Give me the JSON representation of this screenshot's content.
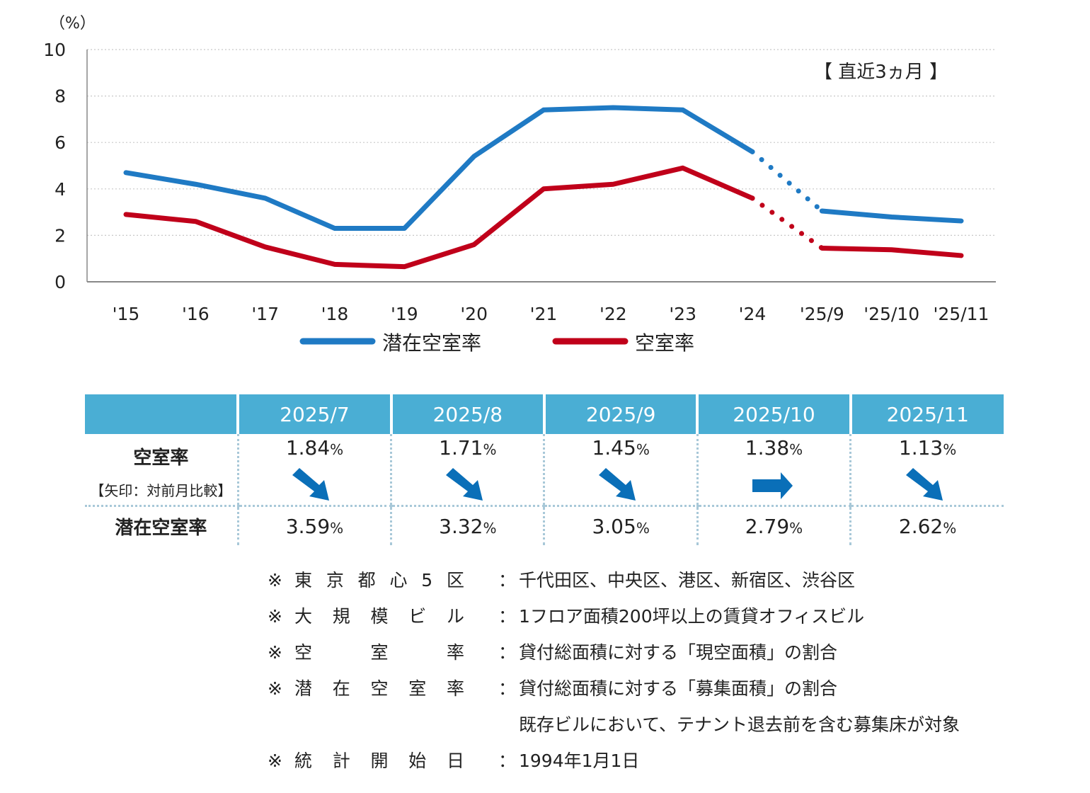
{
  "chart_data": {
    "type": "line",
    "unit_label": "（%）",
    "categories": [
      "'15",
      "'16",
      "'17",
      "'18",
      "'19",
      "'20",
      "'21",
      "'22",
      "'23",
      "'24",
      "'25/9",
      "'25/10",
      "'25/11"
    ],
    "ylim": [
      0,
      10
    ],
    "yticks": [
      0,
      2,
      4,
      6,
      8,
      10
    ],
    "grid": true,
    "annotation": "【 直近3ヵ月 】",
    "legend": "bottom",
    "series": [
      {
        "name": "潜在空室率",
        "color": "#1f7ac4",
        "values": [
          4.7,
          4.2,
          3.6,
          2.3,
          2.3,
          5.4,
          7.4,
          7.5,
          7.4,
          5.6,
          3.05,
          2.79,
          2.62
        ]
      },
      {
        "name": "空室率",
        "color": "#c0001a",
        "values": [
          2.9,
          2.6,
          1.5,
          0.75,
          0.65,
          1.6,
          4.0,
          4.2,
          4.9,
          3.6,
          1.45,
          1.38,
          1.13
        ]
      }
    ],
    "dotted_segment": [
      9,
      10
    ]
  },
  "table": {
    "header_color": "#4aaed4",
    "arrow_color": "#0a6fb8",
    "months": [
      "2025/7",
      "2025/8",
      "2025/9",
      "2025/10",
      "2025/11"
    ],
    "rows": {
      "vacancy": {
        "label": "空室率",
        "sublabel": "【矢印：対前月比較】",
        "values": [
          "1.84",
          "1.71",
          "1.45",
          "1.38",
          "1.13"
        ],
        "arrows": [
          "down",
          "down",
          "down",
          "flat",
          "down"
        ]
      },
      "potential": {
        "label": "潜在空室率",
        "values": [
          "3.59",
          "3.32",
          "3.05",
          "2.79",
          "2.62"
        ]
      }
    },
    "unit": "%"
  },
  "notes": [
    {
      "mark": "※",
      "label": [
        "東",
        "京",
        "都",
        "心",
        "5",
        "区"
      ],
      "colon": "：",
      "desc": "千代田区、中央区、港区、新宿区、渋谷区"
    },
    {
      "mark": "※",
      "label": [
        "大",
        "規",
        "模",
        "ビ",
        "ル"
      ],
      "colon": "：",
      "desc": "1フロア面積200坪以上の賃貸オフィスビル"
    },
    {
      "mark": "※",
      "label": [
        "空",
        "室",
        "率"
      ],
      "colon": "：",
      "desc": "貸付総面積に対する「現空面積」の割合"
    },
    {
      "mark": "※",
      "label": [
        "潜",
        "在",
        "空",
        "室",
        "率"
      ],
      "colon": "：",
      "desc": "貸付総面積に対する「募集面積」の割合"
    },
    {
      "mark": "",
      "label": [],
      "colon": "",
      "desc": "既存ビルにおいて、テナント退去前を含む募集床が対象"
    },
    {
      "mark": "※",
      "label": [
        "統",
        "計",
        "開",
        "始",
        "日"
      ],
      "colon": "：",
      "desc": "1994年1月1日"
    }
  ]
}
